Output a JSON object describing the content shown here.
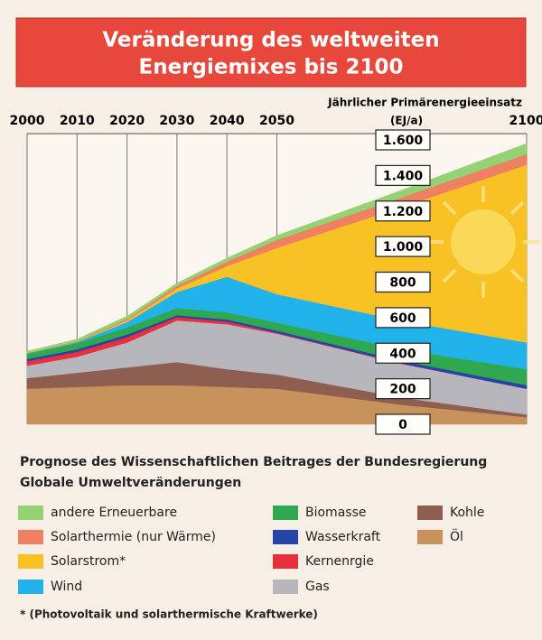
{
  "chart_data": {
    "type": "stacked_area",
    "title": [
      "Veränderung des weltweiten",
      "Energiemixes bis 2100"
    ],
    "y_axis_label": [
      "Jährlicher Primärenergieeinsatz",
      "(EJ/a)"
    ],
    "subtitle": [
      "Prognose des Wissenschaftlichen Beitrages der Bundesregierung",
      "Globale Umweltveränderungen"
    ],
    "footnote": "* (Photovoltaik und solarthermische Kraftwerke)",
    "x": [
      2000,
      2010,
      2020,
      2030,
      2040,
      2050,
      2075,
      2100
    ],
    "xlim": [
      2000,
      2100
    ],
    "xticks": [
      2000,
      2010,
      2020,
      2030,
      2040,
      2050,
      2100
    ],
    "ylim": [
      0,
      1600
    ],
    "yticks": [
      0,
      200,
      400,
      600,
      800,
      {
        "value": 1000,
        "label": "1.000"
      },
      {
        "value": 1200,
        "label": "1.200"
      },
      {
        "value": 1400,
        "label": "1.400"
      },
      {
        "value": 1600,
        "label": "1.600"
      }
    ],
    "grid": "x",
    "series": [
      {
        "name": "Öl",
        "color": "#c8925c",
        "values": [
          200,
          210,
          220,
          220,
          210,
          200,
          110,
          40
        ]
      },
      {
        "name": "Kohle",
        "color": "#8e5e50",
        "values": [
          60,
          80,
          100,
          130,
          100,
          80,
          40,
          15
        ]
      },
      {
        "name": "Gas",
        "color": "#b6b6bc",
        "values": [
          70,
          90,
          140,
          234,
          253,
          230,
          190,
          145
        ]
      },
      {
        "name": "Kernenrgie",
        "color": "#e8303a",
        "values": [
          25,
          28,
          30,
          20,
          15,
          5,
          2,
          0
        ]
      },
      {
        "name": "Wasserkraft",
        "color": "#2444aa",
        "values": [
          12,
          14,
          15,
          10,
          12,
          12,
          15,
          20
        ]
      },
      {
        "name": "Biomasse",
        "color": "#30a850",
        "values": [
          30,
          35,
          40,
          40,
          40,
          45,
          65,
          90
        ]
      },
      {
        "name": "Wind",
        "color": "#22b2ea",
        "values": [
          2,
          5,
          30,
          90,
          200,
          160,
          160,
          150
        ]
      },
      {
        "name": "Solarstrom*",
        "color": "#f8c224",
        "values": [
          0,
          2,
          10,
          20,
          60,
          260,
          640,
          1000
        ]
      },
      {
        "name": "Solarthermie (nur Wärme)",
        "color": "#f08062",
        "values": [
          2,
          3,
          8,
          15,
          25,
          45,
          55,
          60
        ]
      },
      {
        "name": "andere Erneuerbare",
        "color": "#94d274",
        "values": [
          10,
          12,
          15,
          15,
          20,
          25,
          40,
          60
        ]
      }
    ]
  }
}
